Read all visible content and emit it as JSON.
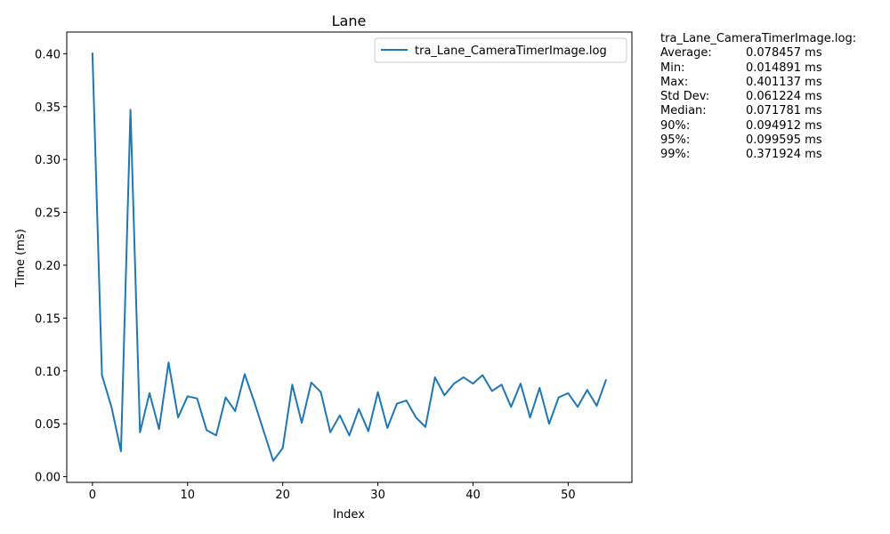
{
  "chart_data": {
    "type": "line",
    "title": "Lane",
    "xlabel": "Index",
    "ylabel": "Time (ms)",
    "xlim": [
      -2.7,
      56.7
    ],
    "ylim": [
      -0.0054,
      0.4205
    ],
    "xticks": [
      0,
      10,
      20,
      30,
      40,
      50
    ],
    "yticks": [
      0.0,
      0.05,
      0.1,
      0.15,
      0.2,
      0.25,
      0.3,
      0.35,
      0.4
    ],
    "ytick_labels": [
      "0.00",
      "0.05",
      "0.10",
      "0.15",
      "0.20",
      "0.25",
      "0.30",
      "0.35",
      "0.40"
    ],
    "legend_position": "top-right",
    "grid": false,
    "series": [
      {
        "name": "tra_Lane_CameraTimerImage.log",
        "color": "#1f77b4",
        "x": [
          0,
          1,
          2,
          3,
          4,
          5,
          6,
          7,
          8,
          9,
          10,
          11,
          12,
          13,
          14,
          15,
          16,
          17,
          18,
          19,
          20,
          21,
          22,
          23,
          24,
          25,
          26,
          27,
          28,
          29,
          30,
          31,
          32,
          33,
          34,
          35,
          36,
          37,
          38,
          39,
          40,
          41,
          42,
          43,
          44,
          45,
          46,
          47,
          48,
          49,
          50,
          51,
          52,
          53,
          54
        ],
        "values": [
          0.401,
          0.096,
          0.066,
          0.024,
          0.347,
          0.042,
          0.079,
          0.045,
          0.108,
          0.056,
          0.076,
          0.074,
          0.044,
          0.039,
          0.075,
          0.062,
          0.097,
          0.071,
          0.043,
          0.015,
          0.027,
          0.087,
          0.051,
          0.089,
          0.08,
          0.042,
          0.058,
          0.039,
          0.064,
          0.043,
          0.08,
          0.046,
          0.069,
          0.072,
          0.056,
          0.047,
          0.094,
          0.077,
          0.088,
          0.094,
          0.088,
          0.096,
          0.081,
          0.087,
          0.066,
          0.088,
          0.056,
          0.084,
          0.05,
          0.075,
          0.079,
          0.066,
          0.082,
          0.067,
          0.092
        ]
      }
    ]
  },
  "stats_panel": {
    "title": "tra_Lane_CameraTimerImage.log:",
    "rows": [
      {
        "label": "Average:",
        "value": "0.078457 ms"
      },
      {
        "label": "Min:",
        "value": "0.014891 ms"
      },
      {
        "label": "Max:",
        "value": "0.401137 ms"
      },
      {
        "label": "Std Dev:",
        "value": "0.061224 ms"
      },
      {
        "label": "Median:",
        "value": "0.071781 ms"
      },
      {
        "label": "90%:",
        "value": "0.094912 ms"
      },
      {
        "label": "95%:",
        "value": "0.099595 ms"
      },
      {
        "label": "99%:",
        "value": "0.371924 ms"
      }
    ]
  }
}
